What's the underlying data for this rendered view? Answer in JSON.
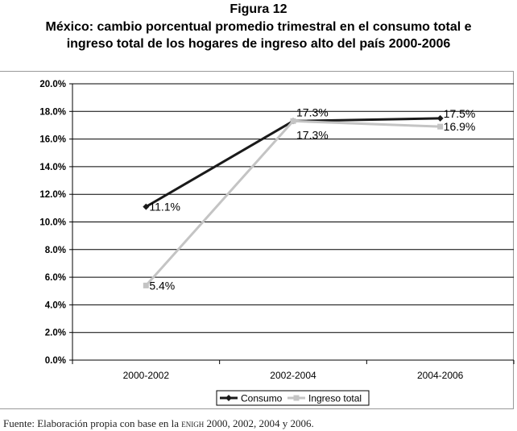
{
  "figure_label": "Figura 12",
  "title_line1": "México: cambio porcentual promedio trimestral en el consumo total e",
  "title_line2": "ingreso total de los hogares de ingreso alto del país 2000-2006",
  "source": {
    "prefix": "Fuente: Elaboración propia con base en la ",
    "smallcaps": "ENIGH",
    "suffix": " 2000, 2002, 2004 y 2006."
  },
  "chart_data": {
    "type": "line",
    "categories": [
      "2000-2002",
      "2002-2004",
      "2004-2006"
    ],
    "series": [
      {
        "name": "Consumo",
        "values": [
          11.1,
          17.3,
          17.5
        ],
        "labels": [
          "11.1%",
          "17.3%",
          "17.5%"
        ],
        "color": "#1a1a1a",
        "marker": "diamond"
      },
      {
        "name": "Ingreso total",
        "values": [
          5.4,
          17.3,
          16.9
        ],
        "labels": [
          "5.4%",
          "17.3%",
          "16.9%"
        ],
        "color": "#c4c4c4",
        "marker": "square"
      }
    ],
    "yticks": [
      "0.0%",
      "2.0%",
      "4.0%",
      "6.0%",
      "8.0%",
      "10.0%",
      "12.0%",
      "14.0%",
      "16.0%",
      "18.0%",
      "20.0%"
    ],
    "ylim": [
      0,
      20
    ],
    "ystep": 2,
    "grid": true,
    "legend_position": "bottom"
  }
}
